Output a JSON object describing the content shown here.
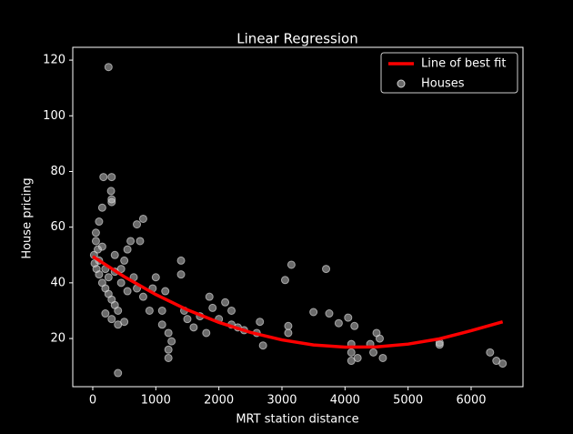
{
  "chart_data": {
    "type": "scatter",
    "title": "Linear Regression",
    "x_label": "MRT station distance",
    "y_label": "House pricing",
    "xlim": [
      -317,
      6822
    ],
    "ylim": [
      2.7,
      124.6
    ],
    "xticks": [
      0,
      1000,
      2000,
      3000,
      4000,
      5000,
      6000
    ],
    "yticks": [
      20,
      40,
      60,
      80,
      100,
      120
    ],
    "legend": "upper right",
    "series": [
      {
        "name": "Line of best fit",
        "type": "line",
        "color": "#ff0000",
        "x": [
          0,
          500,
          1000,
          1500,
          2000,
          2500,
          3000,
          3500,
          4000,
          4500,
          5000,
          5500,
          6000,
          6500
        ],
        "values": [
          49.5,
          42.2,
          35.8,
          30.3,
          25.8,
          22.2,
          19.5,
          17.7,
          16.9,
          17.0,
          18.0,
          19.9,
          22.8,
          26
        ]
      },
      {
        "name": "Houses",
        "type": "scatter",
        "color": "#d3d3d3",
        "x": [
          250,
          400,
          170,
          300,
          290,
          300,
          300,
          150,
          100,
          50,
          50,
          80,
          20,
          30,
          60,
          100,
          150,
          200,
          250,
          300,
          350,
          400,
          200,
          300,
          400,
          500,
          450,
          500,
          550,
          600,
          700,
          800,
          750,
          650,
          700,
          800,
          900,
          950,
          1000,
          1100,
          1100,
          1150,
          1200,
          1200,
          1200,
          1250,
          1400,
          1400,
          1450,
          1500,
          1600,
          1700,
          1800,
          1850,
          1900,
          2000,
          2100,
          2200,
          2200,
          2300,
          2400,
          2600,
          2650,
          2700,
          3050,
          3100,
          3100,
          3150,
          3500,
          3700,
          3750,
          3900,
          4050,
          4100,
          4100,
          4100,
          4200,
          4150,
          4400,
          4450,
          4500,
          4550,
          4600,
          5500,
          5500,
          6300,
          6400,
          6500,
          100,
          200,
          250,
          350,
          450,
          550,
          150,
          350
        ],
        "values": [
          117.5,
          7.6,
          78,
          78,
          73,
          70,
          69,
          67,
          62,
          58,
          55,
          52,
          50,
          47,
          45,
          43,
          40,
          38,
          36,
          34,
          32,
          30,
          29,
          27,
          25,
          26,
          45,
          48,
          52,
          55,
          61,
          63,
          55,
          42,
          38,
          35,
          30,
          38,
          42,
          30,
          25,
          37,
          22,
          16,
          13,
          19,
          48,
          43,
          30,
          27,
          24,
          28,
          22,
          35,
          31,
          27,
          33,
          30,
          25,
          24,
          23,
          22,
          26,
          17.5,
          41,
          24.5,
          22,
          46.5,
          29.5,
          45,
          29,
          25.5,
          27.5,
          18,
          15,
          12,
          13,
          24.5,
          18,
          15,
          22,
          20,
          13,
          17.8,
          18.5,
          15,
          12,
          11,
          48,
          45,
          42,
          44,
          40,
          37,
          53,
          50
        ]
      }
    ]
  }
}
